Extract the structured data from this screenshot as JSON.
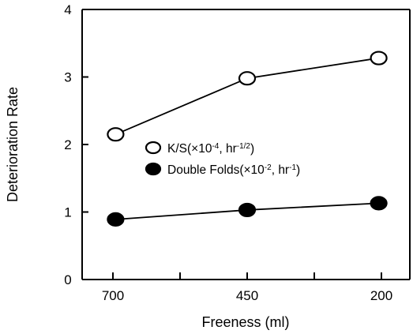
{
  "chart_data": {
    "type": "line",
    "xlabel": "Freeness (ml)",
    "ylabel": "Deterioration Rate",
    "xlim": [
      740,
      180
    ],
    "ylim": [
      0,
      4
    ],
    "x_ticks": [
      700,
      450,
      200
    ],
    "x_minor_ticks": [
      575,
      325
    ],
    "y_ticks": [
      0,
      1,
      2,
      3,
      4
    ],
    "legend_position": "center-right",
    "series": [
      {
        "name": "K/S(×10-4, hr-1/2)",
        "marker": "open-circle",
        "x": [
          695,
          450,
          205
        ],
        "y": [
          2.15,
          2.98,
          3.28
        ]
      },
      {
        "name": "Double Folds(×10-2, hr-1)",
        "marker": "filled-circle",
        "x": [
          695,
          450,
          205
        ],
        "y": [
          0.89,
          1.03,
          1.13
        ]
      }
    ],
    "legend": [
      {
        "marker": "open-circle",
        "prefix": "K/S(",
        "base": "×10",
        "exp": "-4",
        "mid": ", hr",
        "exp2": "-1/2",
        "suffix": ")"
      },
      {
        "marker": "filled-circle",
        "prefix": "Double Folds(",
        "base": "×10",
        "exp": "-2",
        "mid": ", hr",
        "exp2": "-1",
        "suffix": ")"
      }
    ]
  }
}
